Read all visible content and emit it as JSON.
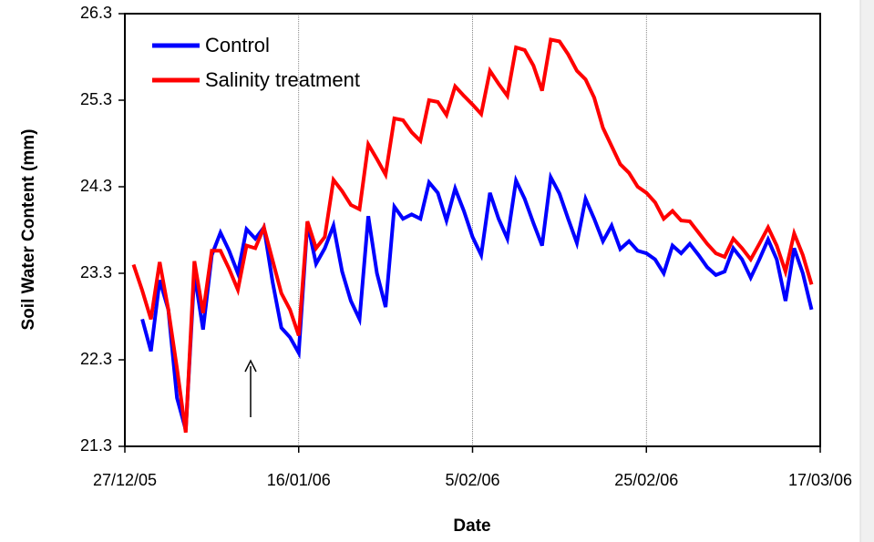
{
  "chart_data": {
    "type": "line",
    "x_label": "Date",
    "y_label": "Soil Water Content (mm)",
    "x": [
      "28/12/05",
      "29/12/05",
      "30/12/05",
      "31/12/05",
      "1/01/06",
      "2/01/06",
      "3/01/06",
      "4/01/06",
      "5/01/06",
      "6/01/06",
      "7/01/06",
      "8/01/06",
      "9/01/06",
      "10/01/06",
      "11/01/06",
      "12/01/06",
      "13/01/06",
      "14/01/06",
      "15/01/06",
      "16/01/06",
      "17/01/06",
      "18/01/06",
      "19/01/06",
      "20/01/06",
      "21/01/06",
      "22/01/06",
      "23/01/06",
      "24/01/06",
      "25/01/06",
      "26/01/06",
      "27/01/06",
      "28/01/06",
      "29/01/06",
      "30/01/06",
      "31/01/06",
      "1/02/06",
      "2/02/06",
      "3/02/06",
      "4/02/06",
      "5/02/06",
      "6/02/06",
      "7/02/06",
      "8/02/06",
      "9/02/06",
      "10/02/06",
      "11/02/06",
      "12/02/06",
      "13/02/06",
      "14/02/06",
      "15/02/06",
      "16/02/06",
      "17/02/06",
      "18/02/06",
      "19/02/06",
      "20/02/06",
      "21/02/06",
      "22/02/06",
      "23/02/06",
      "24/02/06",
      "25/02/06",
      "26/02/06",
      "27/02/06",
      "28/02/06",
      "1/03/06",
      "2/03/06",
      "3/03/06",
      "4/03/06",
      "5/03/06",
      "6/03/06",
      "7/03/06",
      "8/03/06",
      "9/03/06",
      "10/03/06",
      "11/03/06",
      "12/03/06",
      "13/03/06",
      "14/03/06",
      "15/03/06",
      "16/03/06"
    ],
    "series": [
      {
        "name": "Control",
        "color": "#0000ff",
        "values": [
          null,
          22.77,
          22.4,
          23.22,
          22.88,
          21.86,
          21.49,
          23.3,
          22.65,
          23.51,
          23.77,
          23.56,
          23.3,
          23.81,
          23.7,
          23.83,
          23.2,
          22.67,
          22.56,
          22.38,
          23.88,
          23.41,
          23.59,
          23.85,
          23.32,
          22.98,
          22.77,
          23.96,
          23.3,
          22.91,
          24.07,
          23.93,
          23.98,
          23.93,
          24.35,
          24.23,
          23.91,
          24.28,
          24.02,
          23.72,
          23.51,
          24.23,
          23.93,
          23.7,
          24.37,
          24.16,
          23.88,
          23.62,
          24.41,
          24.22,
          23.93,
          23.65,
          24.16,
          23.93,
          23.67,
          23.85,
          23.58,
          23.67,
          23.56,
          23.53,
          23.46,
          23.3,
          23.62,
          23.53,
          23.64,
          23.51,
          23.37,
          23.28,
          23.32,
          23.59,
          23.46,
          23.25,
          23.46,
          23.69,
          23.46,
          22.98,
          23.59,
          23.3,
          22.88
        ]
      },
      {
        "name": "Salinity treatment",
        "color": "#ff0000",
        "values": [
          23.4,
          23.1,
          22.77,
          23.43,
          22.88,
          22.2,
          21.46,
          23.44,
          22.84,
          23.56,
          23.56,
          23.35,
          23.11,
          23.62,
          23.59,
          23.83,
          23.45,
          23.07,
          22.88,
          22.58,
          23.9,
          23.59,
          23.72,
          24.38,
          24.25,
          24.09,
          24.04,
          24.79,
          24.62,
          24.44,
          25.09,
          25.07,
          24.93,
          24.83,
          25.3,
          25.28,
          25.13,
          25.46,
          25.35,
          25.25,
          25.14,
          25.64,
          25.49,
          25.35,
          25.91,
          25.88,
          25.7,
          25.41,
          26.0,
          25.98,
          25.83,
          25.64,
          25.54,
          25.33,
          24.98,
          24.77,
          24.56,
          24.46,
          24.3,
          24.23,
          24.12,
          23.93,
          24.02,
          23.91,
          23.9,
          23.77,
          23.64,
          23.53,
          23.49,
          23.7,
          23.59,
          23.46,
          23.64,
          23.83,
          23.62,
          23.32,
          23.76,
          23.51,
          23.17
        ]
      }
    ],
    "xlim": [
      "27/12/05",
      "17/03/06"
    ],
    "xticks": [
      "27/12/05",
      "16/01/06",
      "5/02/06",
      "25/02/06",
      "17/03/06"
    ],
    "ylim": [
      21.3,
      26.3
    ],
    "yticks": [
      21.3,
      22.3,
      23.3,
      24.3,
      25.3,
      26.3
    ],
    "grid": "x",
    "legend": "upper left"
  }
}
